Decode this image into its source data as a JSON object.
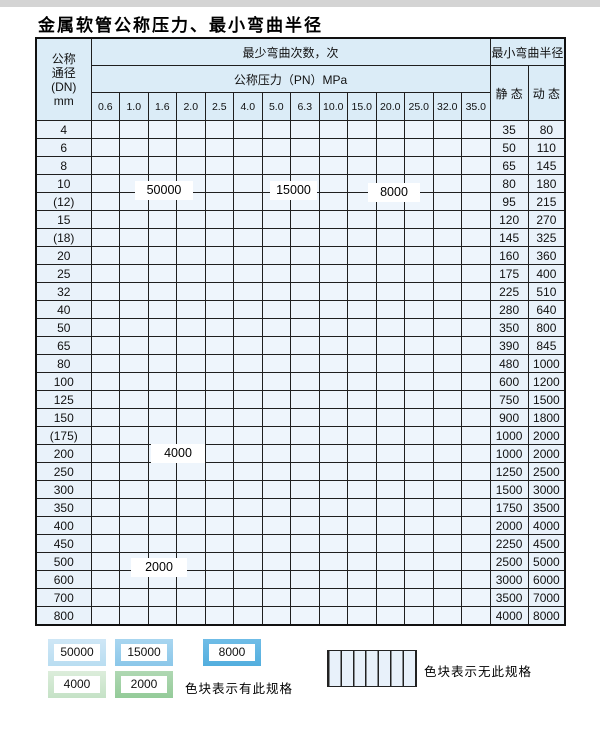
{
  "title": "金属软管公称压力、最小弯曲半径",
  "chart_data": {
    "type": "heatmap",
    "title": "金属软管公称压力、最小弯曲半径",
    "col_group_label": "最少弯曲次数，次",
    "col_subgroup_label": "公称压力（PN）MPa",
    "radius_group_label": "最小弯曲半径",
    "static_col_label": "静 态",
    "dynamic_col_label": "动 态",
    "row_header_lines": [
      "公称",
      "通径",
      "(DN)",
      "mm"
    ],
    "columns": [
      "0.6",
      "1.0",
      "1.6",
      "2.0",
      "2.5",
      "4.0",
      "5.0",
      "6.3",
      "10.0",
      "15.0",
      "20.0",
      "25.0",
      "32.0",
      "35.0"
    ],
    "cell_codes": {
      "b1": "50000",
      "b2": "15000",
      "b3": "8000",
      "g1": "4000",
      "g2": "2000",
      "x": "无此规格"
    },
    "rows": [
      {
        "dn": "4",
        "cells": [
          "b1",
          "b1",
          "b1",
          "b1",
          "b1",
          "b2",
          "b2",
          "b2",
          "b2",
          "b3",
          "b3",
          "b3",
          "b3",
          "b3"
        ],
        "static": "35",
        "dynamic": "80"
      },
      {
        "dn": "6",
        "cells": [
          "b1",
          "b1",
          "b1",
          "b1",
          "b1",
          "b2",
          "b2",
          "b2",
          "b2",
          "b3",
          "b3",
          "b3",
          "x",
          "x"
        ],
        "static": "50",
        "dynamic": "110"
      },
      {
        "dn": "8",
        "cells": [
          "b1",
          "b1",
          "b1",
          "b1",
          "b1",
          "b2",
          "b2",
          "b2",
          "b2",
          "b3",
          "b3",
          "b3",
          "x",
          "x"
        ],
        "static": "65",
        "dynamic": "145"
      },
      {
        "dn": "10",
        "cells": [
          "b1",
          "b1",
          "b1",
          "b1",
          "b1",
          "b2",
          "b2",
          "b2",
          "b2",
          "b3",
          "b3",
          "b3",
          "x",
          "x"
        ],
        "static": "80",
        "dynamic": "180"
      },
      {
        "dn": "(12)",
        "cells": [
          "b1",
          "b1",
          "b1",
          "b1",
          "b1",
          "b2",
          "b2",
          "b2",
          "b2",
          "b3",
          "b3",
          "b3",
          "x",
          "x"
        ],
        "static": "95",
        "dynamic": "215"
      },
      {
        "dn": "15",
        "cells": [
          "b1",
          "b1",
          "b1",
          "b1",
          "b1",
          "b2",
          "b2",
          "b2",
          "b2",
          "b3",
          "b3",
          "b3",
          "x",
          "x"
        ],
        "static": "120",
        "dynamic": "270"
      },
      {
        "dn": "(18)",
        "cells": [
          "b1",
          "b1",
          "b1",
          "b1",
          "b1",
          "b2",
          "b2",
          "b2",
          "b3",
          "b3",
          "b3",
          "x",
          "x",
          "x"
        ],
        "static": "145",
        "dynamic": "325"
      },
      {
        "dn": "20",
        "cells": [
          "b1",
          "b1",
          "b1",
          "b1",
          "b1",
          "b2",
          "b2",
          "b2",
          "b3",
          "b3",
          "b3",
          "x",
          "x",
          "x"
        ],
        "static": "160",
        "dynamic": "360"
      },
      {
        "dn": "25",
        "cells": [
          "b1",
          "b1",
          "b1",
          "b1",
          "b1",
          "b2",
          "b2",
          "b2",
          "b3",
          "b3",
          "x",
          "x",
          "x",
          "x"
        ],
        "static": "175",
        "dynamic": "400"
      },
      {
        "dn": "32",
        "cells": [
          "b1",
          "b1",
          "b1",
          "b1",
          "b1",
          "b2",
          "b2",
          "b3",
          "b3",
          "x",
          "x",
          "x",
          "x",
          "x"
        ],
        "static": "225",
        "dynamic": "510"
      },
      {
        "dn": "40",
        "cells": [
          "b1",
          "b1",
          "b1",
          "b1",
          "b1",
          "b2",
          "b3",
          "b3",
          "x",
          "x",
          "x",
          "x",
          "x",
          "x"
        ],
        "static": "280",
        "dynamic": "640"
      },
      {
        "dn": "50",
        "cells": [
          "b1",
          "b1",
          "b1",
          "b1",
          "b2",
          "b2",
          "b3",
          "b3",
          "x",
          "x",
          "x",
          "x",
          "x",
          "x"
        ],
        "static": "350",
        "dynamic": "800"
      },
      {
        "dn": "65",
        "cells": [
          "b1",
          "b1",
          "b1",
          "b1",
          "b2",
          "b2",
          "b3",
          "b3",
          "x",
          "x",
          "x",
          "x",
          "x",
          "x"
        ],
        "static": "390",
        "dynamic": "845"
      },
      {
        "dn": "80",
        "cells": [
          "b1",
          "b1",
          "b2",
          "b2",
          "b2",
          "b3",
          "b3",
          "x",
          "x",
          "x",
          "x",
          "x",
          "x",
          "x"
        ],
        "static": "480",
        "dynamic": "1000"
      },
      {
        "dn": "100",
        "cells": [
          "g1",
          "g1",
          "g1",
          "g1",
          "g1",
          "g1",
          "x",
          "x",
          "x",
          "x",
          "x",
          "x",
          "x",
          "x"
        ],
        "static": "600",
        "dynamic": "1200"
      },
      {
        "dn": "125",
        "cells": [
          "g1",
          "g1",
          "g1",
          "g1",
          "g1",
          "g1",
          "x",
          "x",
          "x",
          "x",
          "x",
          "x",
          "x",
          "x"
        ],
        "static": "750",
        "dynamic": "1500"
      },
      {
        "dn": "150",
        "cells": [
          "g1",
          "g1",
          "g1",
          "g1",
          "g1",
          "g1",
          "x",
          "x",
          "x",
          "x",
          "x",
          "x",
          "x",
          "x"
        ],
        "static": "900",
        "dynamic": "1800"
      },
      {
        "dn": "(175)",
        "cells": [
          "g1",
          "g1",
          "g1",
          "g1",
          "g1",
          "g1",
          "x",
          "x",
          "x",
          "x",
          "x",
          "x",
          "x",
          "x"
        ],
        "static": "1000",
        "dynamic": "2000"
      },
      {
        "dn": "200",
        "cells": [
          "g1",
          "g1",
          "g1",
          "g1",
          "g1",
          "g1",
          "x",
          "x",
          "x",
          "x",
          "x",
          "x",
          "x",
          "x"
        ],
        "static": "1000",
        "dynamic": "2000"
      },
      {
        "dn": "250",
        "cells": [
          "g1",
          "g1",
          "g1",
          "g1",
          "g1",
          "g1",
          "x",
          "x",
          "x",
          "x",
          "x",
          "x",
          "x",
          "x"
        ],
        "static": "1250",
        "dynamic": "2500"
      },
      {
        "dn": "300",
        "cells": [
          "g1",
          "g1",
          "g1",
          "g1",
          "g1",
          "g1",
          "x",
          "x",
          "x",
          "x",
          "x",
          "x",
          "x",
          "x"
        ],
        "static": "1500",
        "dynamic": "3000"
      },
      {
        "dn": "350",
        "cells": [
          "g2",
          "g2",
          "g2",
          "g2",
          "g2",
          "x",
          "x",
          "x",
          "x",
          "x",
          "x",
          "x",
          "x",
          "x"
        ],
        "static": "1750",
        "dynamic": "3500"
      },
      {
        "dn": "400",
        "cells": [
          "g2",
          "g2",
          "g2",
          "g2",
          "g2",
          "x",
          "x",
          "x",
          "x",
          "x",
          "x",
          "x",
          "x",
          "x"
        ],
        "static": "2000",
        "dynamic": "4000"
      },
      {
        "dn": "450",
        "cells": [
          "g2",
          "g2",
          "g2",
          "g2",
          "g2",
          "x",
          "x",
          "x",
          "x",
          "x",
          "x",
          "x",
          "x",
          "x"
        ],
        "static": "2250",
        "dynamic": "4500"
      },
      {
        "dn": "500",
        "cells": [
          "g2",
          "g2",
          "g2",
          "g2",
          "g2",
          "x",
          "x",
          "x",
          "x",
          "x",
          "x",
          "x",
          "x",
          "x"
        ],
        "static": "2500",
        "dynamic": "5000"
      },
      {
        "dn": "600",
        "cells": [
          "g2",
          "g2",
          "g2",
          "g2",
          "x",
          "x",
          "x",
          "x",
          "x",
          "x",
          "x",
          "x",
          "x",
          "x"
        ],
        "static": "3000",
        "dynamic": "6000"
      },
      {
        "dn": "700",
        "cells": [
          "g2",
          "g2",
          "g2",
          "x",
          "x",
          "x",
          "x",
          "x",
          "x",
          "x",
          "x",
          "x",
          "x",
          "x"
        ],
        "static": "3500",
        "dynamic": "7000"
      },
      {
        "dn": "800",
        "cells": [
          "g2",
          "g2",
          "g2",
          "x",
          "x",
          "x",
          "x",
          "x",
          "x",
          "x",
          "x",
          "x",
          "x",
          "x"
        ],
        "static": "4000",
        "dynamic": "8000"
      }
    ]
  },
  "overlay_labels": {
    "l50000": "50000",
    "l15000": "15000",
    "l8000": "8000",
    "l4000": "4000",
    "l2000": "2000"
  },
  "legend": {
    "swatches": [
      {
        "code": "b1",
        "label": "50000"
      },
      {
        "code": "b2",
        "label": "15000"
      },
      {
        "code": "b3",
        "label": "8000"
      },
      {
        "code": "g1",
        "label": "4000"
      },
      {
        "code": "g2",
        "label": "2000"
      }
    ],
    "has_spec_text": "色块表示有此规格",
    "no_spec_text": "色块表示无此规格"
  },
  "colors": {
    "blue_50000": "#cfe7f6",
    "blue_15000": "#9ad0ec",
    "blue_8000": "#5fb5e2",
    "green_4000": "#d0e8d1",
    "green_2000": "#a2d2a6",
    "no_spec_bg": "#edf4fb",
    "header_bg": "#dbecf7"
  }
}
